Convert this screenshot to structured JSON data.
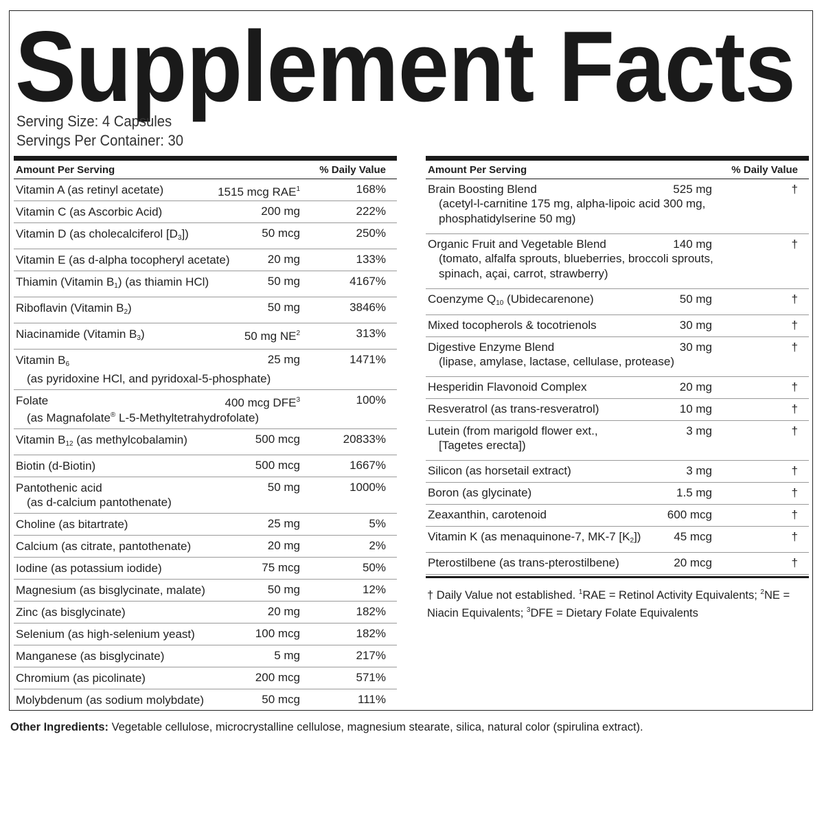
{
  "title": "Supplement Facts",
  "serving_size": "Serving Size: 4 Capsules",
  "servings_per_container": "Servings Per Container: 30",
  "left_table": {
    "headers": [
      "Amount Per Serving",
      "% Daily Value"
    ],
    "rows": [
      {
        "name": [
          "Vitamin A (as retinyl acetate)"
        ],
        "amount": [
          "1515 mcg RAE",
          {
            "sup": "1"
          }
        ],
        "dv": "168%"
      },
      {
        "name": [
          "Vitamin C (as Ascorbic Acid)"
        ],
        "amount": [
          "200 mg"
        ],
        "dv": "222%"
      },
      {
        "name": [
          "Vitamin D (as cholecalciferol [D",
          {
            "sub": "3"
          },
          "])"
        ],
        "amount": [
          "50 mcg"
        ],
        "dv": "250%"
      },
      {
        "name": [
          "Vitamin E (as d-alpha tocopheryl acetate)"
        ],
        "amount": [
          "20 mg"
        ],
        "dv": "133%"
      },
      {
        "name": [
          "Thiamin (Vitamin B",
          {
            "sub": "1"
          },
          ") (as thiamin HCl)"
        ],
        "amount": [
          "50 mg"
        ],
        "dv": "4167%"
      },
      {
        "name": [
          "Riboflavin (Vitamin B",
          {
            "sub": "2"
          },
          ")"
        ],
        "amount": [
          "50 mg"
        ],
        "dv": "3846%"
      },
      {
        "name": [
          "Niacinamide (Vitamin B",
          {
            "sub": "3"
          },
          ")"
        ],
        "amount": [
          "50 mg NE",
          {
            "sup": "2"
          }
        ],
        "dv": "313%"
      },
      {
        "name": [
          "Vitamin B",
          {
            "sub": "6"
          }
        ],
        "detail": [
          [
            "(as pyridoxine HCl, and pyridoxal-5-phosphate)"
          ]
        ],
        "amount": [
          "25 mg"
        ],
        "dv": "1471%"
      },
      {
        "name": [
          "Folate"
        ],
        "detail": [
          [
            "(as Magnafolate",
            {
              "sup": "®"
            },
            " L-5-Methyltetrahydrofolate)"
          ]
        ],
        "amount": [
          "400 mcg DFE",
          {
            "sup": "3"
          }
        ],
        "dv": "100%"
      },
      {
        "name": [
          "Vitamin B",
          {
            "sub": "12"
          },
          " (as methylcobalamin)"
        ],
        "amount": [
          "500 mcg"
        ],
        "dv": "20833%"
      },
      {
        "name": [
          "Biotin (d-Biotin)"
        ],
        "amount": [
          "500 mcg"
        ],
        "dv": "1667%"
      },
      {
        "name": [
          "Pantothenic acid"
        ],
        "detail": [
          [
            "(as d-calcium pantothenate)"
          ]
        ],
        "amount": [
          "50 mg"
        ],
        "dv": "1000%"
      },
      {
        "name": [
          "Choline (as bitartrate)"
        ],
        "amount": [
          "25 mg"
        ],
        "dv": "5%"
      },
      {
        "name": [
          "Calcium (as citrate, pantothenate)"
        ],
        "amount": [
          "20 mg"
        ],
        "dv": "2%"
      },
      {
        "name": [
          "Iodine (as potassium iodide)"
        ],
        "amount": [
          "75 mcg"
        ],
        "dv": "50%"
      },
      {
        "name": [
          "Magnesium (as bisglycinate, malate)"
        ],
        "amount": [
          "50 mg"
        ],
        "dv": "12%"
      },
      {
        "name": [
          "Zinc (as bisglycinate)"
        ],
        "amount": [
          "20 mg"
        ],
        "dv": "182%"
      },
      {
        "name": [
          "Selenium (as high-selenium yeast)"
        ],
        "amount": [
          "100 mcg"
        ],
        "dv": "182%"
      },
      {
        "name": [
          "Manganese (as bisglycinate)"
        ],
        "amount": [
          "5 mg"
        ],
        "dv": "217%"
      },
      {
        "name": [
          "Chromium (as picolinate)"
        ],
        "amount": [
          "200 mcg"
        ],
        "dv": "571%"
      },
      {
        "name": [
          "Molybdenum (as sodium molybdate)"
        ],
        "amount": [
          "50 mcg"
        ],
        "dv": "111%"
      }
    ]
  },
  "right_table": {
    "headers": [
      "Amount Per Serving",
      "% Daily Value"
    ],
    "rows": [
      {
        "name": [
          "Brain Boosting Blend"
        ],
        "detail": [
          [
            "(acetyl-l-carnitine 175 mg, alpha-lipoic acid 300 mg,"
          ],
          [
            "phosphatidylserine 50 mg)"
          ]
        ],
        "amount": [
          "525 mg"
        ],
        "dv": "†"
      },
      {
        "name": [
          "Organic Fruit and Vegetable Blend"
        ],
        "detail": [
          [
            "(tomato, alfalfa sprouts, blueberries, broccoli sprouts,"
          ],
          [
            "spinach, açai, carrot, strawberry)"
          ]
        ],
        "amount": [
          "140 mg"
        ],
        "dv": "†"
      },
      {
        "name": [
          "Coenzyme Q",
          {
            "sub": "10"
          },
          " (Ubidecarenone)"
        ],
        "amount": [
          "50 mg"
        ],
        "dv": "†"
      },
      {
        "name": [
          "Mixed tocopherols & tocotrienols"
        ],
        "amount": [
          "30 mg"
        ],
        "dv": "†"
      },
      {
        "name": [
          "Digestive Enzyme Blend"
        ],
        "detail": [
          [
            "(lipase, amylase, lactase, cellulase, protease)"
          ]
        ],
        "amount": [
          "30 mg"
        ],
        "dv": "†"
      },
      {
        "name": [
          "Hesperidin Flavonoid Complex"
        ],
        "amount": [
          "20 mg"
        ],
        "dv": "†"
      },
      {
        "name": [
          "Resveratrol (as trans-resveratrol)"
        ],
        "amount": [
          "10 mg"
        ],
        "dv": "†"
      },
      {
        "name": [
          "Lutein (from marigold flower ext.,"
        ],
        "detail": [
          [
            "[Tagetes erecta])"
          ]
        ],
        "amount": [
          "3 mg"
        ],
        "dv": "†"
      },
      {
        "name": [
          "Silicon (as horsetail extract)"
        ],
        "amount": [
          "3 mg"
        ],
        "dv": "†"
      },
      {
        "name": [
          "Boron (as glycinate)"
        ],
        "amount": [
          "1.5 mg"
        ],
        "dv": "†"
      },
      {
        "name": [
          "Zeaxanthin, carotenoid"
        ],
        "amount": [
          "600 mcg"
        ],
        "dv": "†"
      },
      {
        "name": [
          "Vitamin K (as menaquinone-7, MK-7 [K",
          {
            "sub": "2"
          },
          "])"
        ],
        "amount": [
          "45 mcg"
        ],
        "dv": "†"
      },
      {
        "name": [
          "Pterostilbene (as trans-pterostilbene)"
        ],
        "amount": [
          "20 mcg"
        ],
        "dv": "†"
      }
    ]
  },
  "footnote": [
    "† Daily Value not established. ",
    {
      "sup": "1"
    },
    "RAE = Retinol Activity Equivalents; ",
    {
      "sup": "2"
    },
    "NE = Niacin Equivalents; ",
    {
      "sup": "3"
    },
    "DFE = Dietary Folate Equivalents"
  ],
  "other_ingredients": {
    "label": "Other Ingredients:",
    "text": " Vegetable cellulose, microcrystalline cellulose, magnesium stearate, silica, natural color (spirulina extract)."
  }
}
